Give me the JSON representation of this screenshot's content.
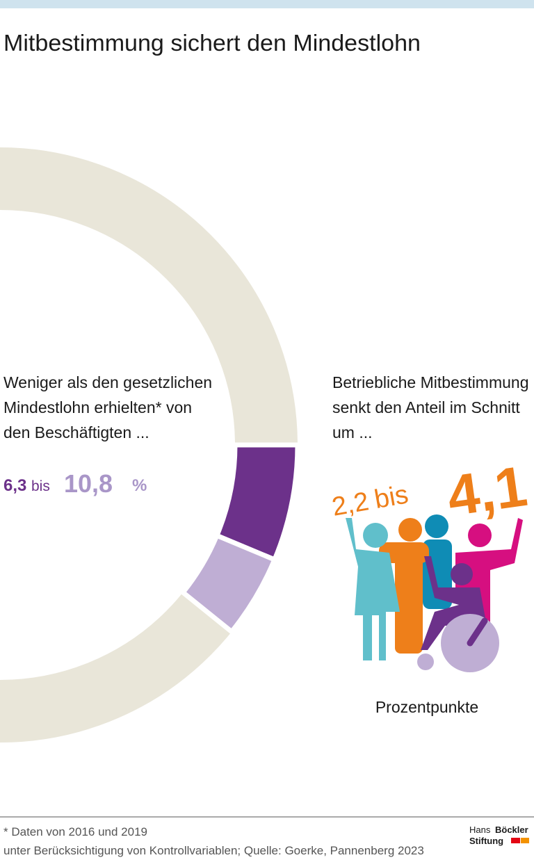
{
  "chart_data": {
    "type": "pie",
    "title": "Mitbestimmung sichert den Mindestlohn",
    "description": [
      "Weniger als den gesetzlichen",
      "Mindestlohn erhielten* von",
      "den Beschäftigten ..."
    ],
    "values": [
      6.3,
      10.8
    ],
    "value_labels": [
      "6,3",
      "10,8"
    ],
    "range_word": "bis",
    "unit": "%",
    "colors": [
      "#6c318a",
      "#bfaed4"
    ],
    "track_color": "#e9e6d9"
  },
  "effect": {
    "lines": [
      "Betriebliche Mitbestimmung",
      "senkt den Anteil im Schnitt",
      "um ..."
    ],
    "from": "2,2",
    "range_word": "bis",
    "to": "4,1",
    "unit": "Prozentpunkte"
  },
  "footer": {
    "note": "* Daten von 2016 und 2019",
    "source": "unter Berücksichtigung von Kontrollvariablen; Quelle: Goerke, Pannenberg 2023",
    "logo": [
      "Hans",
      "Böckler",
      "Stiftung"
    ]
  }
}
